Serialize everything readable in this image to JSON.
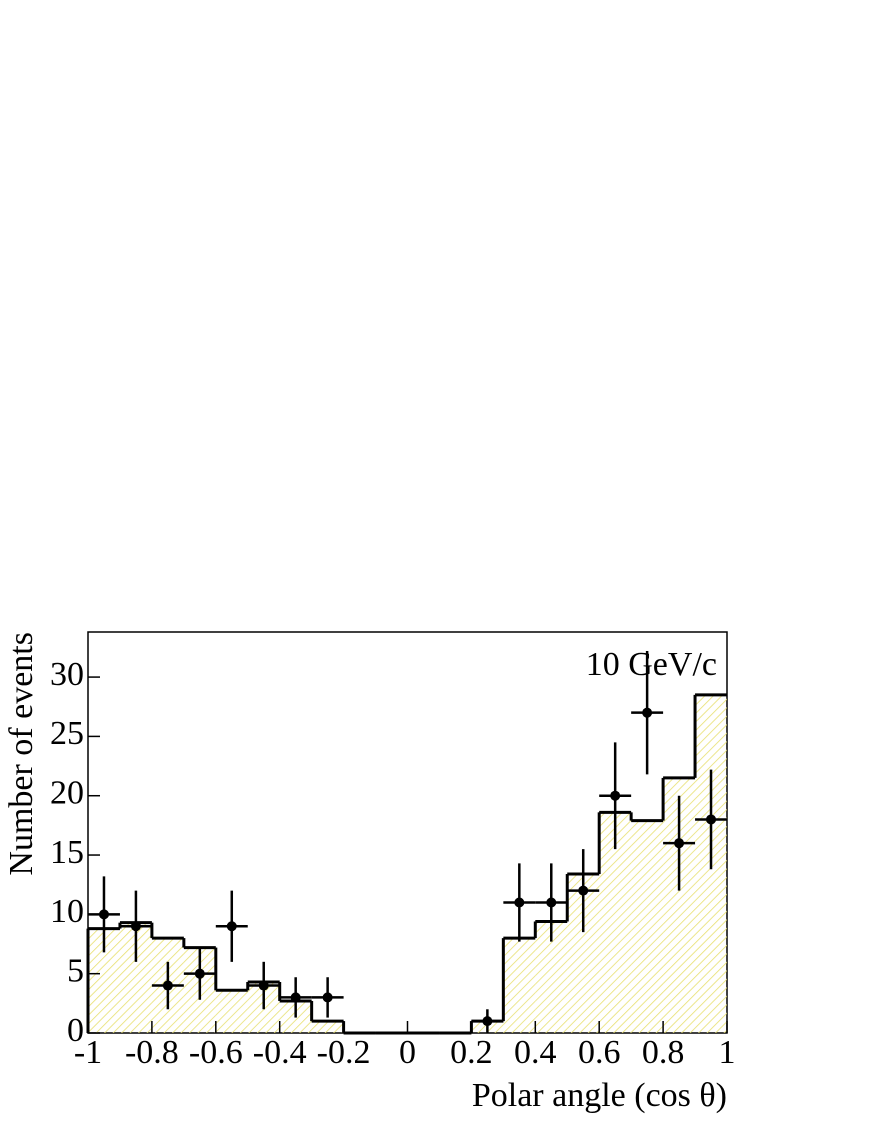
{
  "chart_data": {
    "type": "histogram",
    "annotation": "10 GeV/c",
    "x_label": "Polar angle (cos θ)",
    "y_label": "Number of events",
    "xlim": [
      -1,
      1
    ],
    "ylim": [
      0,
      33.8
    ],
    "xticks": [
      -1,
      -0.8,
      -0.6,
      -0.4,
      -0.2,
      0,
      0.2,
      0.4,
      0.6,
      0.8,
      1
    ],
    "yticks": [
      0,
      5,
      10,
      15,
      20,
      25,
      30
    ],
    "bins": [
      -1,
      -0.9,
      -0.8,
      -0.7,
      -0.6,
      -0.5,
      -0.4,
      -0.3,
      -0.2,
      -0.1,
      0,
      0.1,
      0.2,
      0.3,
      0.4,
      0.5,
      0.6,
      0.7,
      0.8,
      0.9,
      1
    ],
    "histogram": {
      "values": [
        8.8,
        9.3,
        8.0,
        7.2,
        3.6,
        4.3,
        2.7,
        1.0,
        0,
        0,
        0,
        0,
        1.0,
        8.0,
        9.4,
        13.4,
        18.6,
        17.9,
        21.5,
        28.5
      ],
      "color": "#000000",
      "fill_color": "#e8e070"
    },
    "points": {
      "x": [
        -0.95,
        -0.85,
        -0.75,
        -0.65,
        -0.55,
        -0.45,
        -0.35,
        -0.25,
        0.25,
        0.35,
        0.45,
        0.55,
        0.65,
        0.75,
        0.85,
        0.95
      ],
      "values": [
        10,
        9,
        4,
        5,
        9,
        4,
        3,
        3,
        1,
        11,
        11,
        12,
        20,
        27,
        16,
        18
      ],
      "errors": [
        3.2,
        3.0,
        2.0,
        2.2,
        3.0,
        2.0,
        1.7,
        1.7,
        1.0,
        3.3,
        3.3,
        3.5,
        4.5,
        5.2,
        4.0,
        4.2
      ],
      "color": "#000000"
    }
  }
}
